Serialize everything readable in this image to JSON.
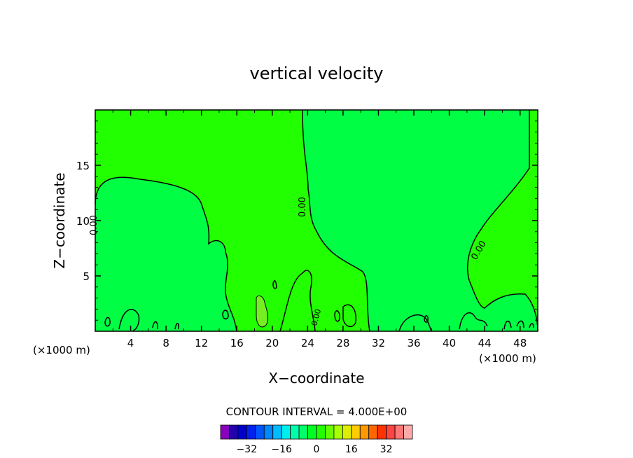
{
  "chart_data": {
    "type": "heatmap",
    "title": "vertical velocity",
    "xlabel": "X−coordinate",
    "ylabel": "Z−coordinate",
    "x_unit_label": "(×1000 m)",
    "y_unit_label": "(×1000 m)",
    "xlim": [
      0,
      50
    ],
    "ylim": [
      0,
      20
    ],
    "x_ticks": [
      4,
      8,
      12,
      16,
      20,
      24,
      28,
      32,
      36,
      40,
      44,
      48
    ],
    "y_ticks": [
      5,
      10,
      15
    ],
    "contour_interval_text": "CONTOUR INTERVAL = 4.000E+00",
    "contour_label": "0.00",
    "regions": [
      {
        "name": "positive (0 to 4)",
        "color": "#22ff00"
      },
      {
        "name": "negative (-4 to 0)",
        "color": "#00ff44"
      },
      {
        "name": "positive (4 to 8)",
        "color": "#77ee22"
      }
    ],
    "colorbar": {
      "colors": [
        "#8800bb",
        "#2200aa",
        "#0000cc",
        "#0022ee",
        "#0055ff",
        "#0088ff",
        "#00bbff",
        "#00eeee",
        "#00ffaa",
        "#00ff66",
        "#00ff22",
        "#22ff00",
        "#66ff00",
        "#aaff00",
        "#ddee00",
        "#ffcc00",
        "#ff9900",
        "#ff6600",
        "#ff3300",
        "#ff4444",
        "#ff7777",
        "#ffaaaa"
      ],
      "tick_labels": [
        "−32",
        "−16",
        "0",
        "16",
        "32"
      ],
      "tick_values": [
        -32,
        -16,
        0,
        16,
        32
      ]
    }
  }
}
